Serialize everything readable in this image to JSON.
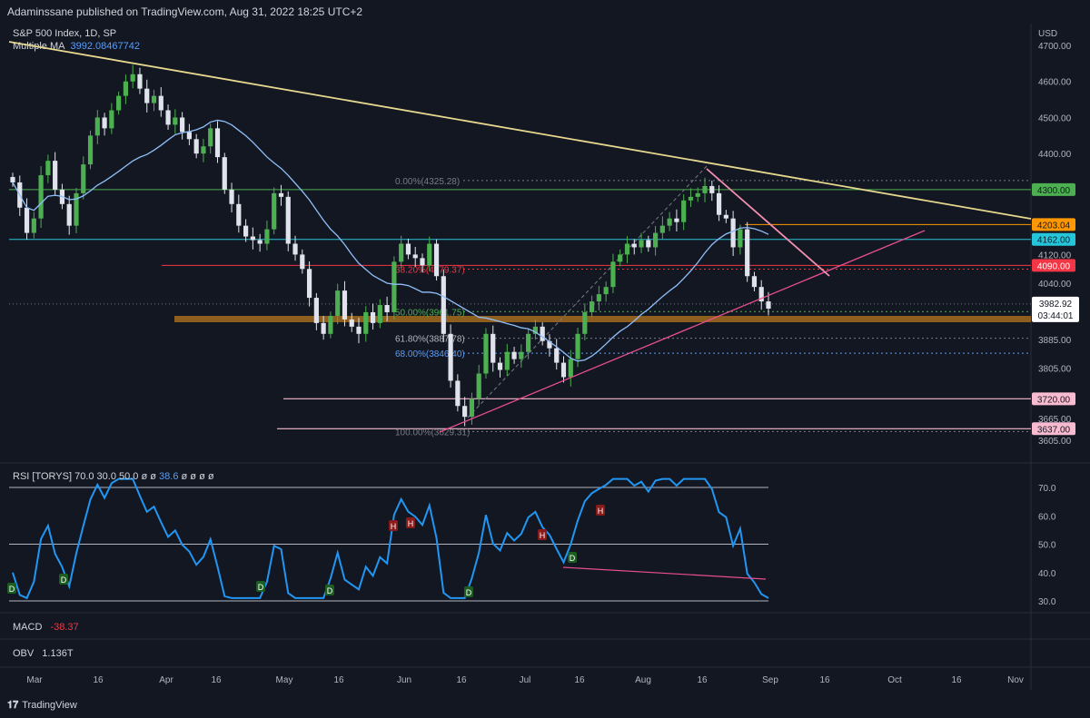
{
  "header": {
    "publisher_line": "Adaminssane published on TradingView.com, Aug 31, 2022 18:25 UTC+2"
  },
  "instrument": {
    "title": "S&P 500 Index, 1D, SP",
    "ma_label": "Multiple MA",
    "ma_value": "3992.08467742"
  },
  "currency": "USD",
  "price_axis": {
    "ticks": [
      "4700.00",
      "4600.00",
      "4500.00",
      "4400.00",
      "4120.00",
      "4040.00",
      "3885.00",
      "3805.00",
      "3665.00",
      "3605.00"
    ]
  },
  "level_badges": [
    {
      "label": "4300.00",
      "bg": "#4caf50",
      "fg": "#131722"
    },
    {
      "label": "4203.04",
      "bg": "#ff9800",
      "fg": "#131722"
    },
    {
      "label": "4162.00",
      "bg": "#26c6da",
      "fg": "#131722"
    },
    {
      "label": "4090.00",
      "bg": "#f23645",
      "fg": "#ffffff"
    },
    {
      "label": "3720.00",
      "bg": "#f8bbd0",
      "fg": "#131722"
    },
    {
      "label": "3637.00",
      "bg": "#f8bbd0",
      "fg": "#131722"
    }
  ],
  "last_price": {
    "price": "3982.92",
    "countdown": "03:44:01"
  },
  "fib_labels": [
    "0.00%(4325.28)",
    "38.20%(4079.37)",
    "50.00%(3961.75)",
    "61.80%(3887.78)",
    "68.00%(3846.40)",
    "100.00%(3629.31)"
  ],
  "rsi": {
    "label": "RSI [TORYS]",
    "params": "70.0  30.0  50.0  ø  ø",
    "value": "38.6",
    "tail": "ø  ø  ø  ø",
    "ticks": [
      "70.0",
      "60.0",
      "50.0",
      "40.0",
      "30.0"
    ],
    "div_marks": [
      {
        "t": "D"
      },
      {
        "t": "D"
      },
      {
        "t": "D"
      },
      {
        "t": "D"
      },
      {
        "t": "D"
      },
      {
        "t": "D"
      },
      {
        "t": "H"
      },
      {
        "t": "H"
      },
      {
        "t": "H"
      },
      {
        "t": "H"
      }
    ]
  },
  "macd": {
    "label": "MACD",
    "value": "-38.37"
  },
  "obv": {
    "label": "OBV",
    "value": "1.136T"
  },
  "time_axis": {
    "ticks": [
      "Mar",
      "16",
      "Apr",
      "16",
      "May",
      "16",
      "Jun",
      "16",
      "Jul",
      "16",
      "Aug",
      "16",
      "Sep",
      "16",
      "Oct",
      "16",
      "Nov"
    ]
  },
  "brand": "TradingView",
  "colors": {
    "up": "#4caf50",
    "down": "#e0e3eb",
    "ma": "#90bff9",
    "trend_upper": "#e6d88f",
    "trend_lower": "#e84f8f",
    "rsi": "#2196f3"
  },
  "chart_data": {
    "type": "candlestick",
    "title": "S&P 500 Index, 1D, SP",
    "ylim": [
      3590,
      4730
    ],
    "approx_closes": [
      4320,
      4250,
      4180,
      4220,
      4340,
      4380,
      4300,
      4260,
      4200,
      4290,
      4370,
      4450,
      4500,
      4470,
      4520,
      4560,
      4600,
      4620,
      4580,
      4540,
      4560,
      4520,
      4480,
      4500,
      4460,
      4440,
      4400,
      4420,
      4470,
      4390,
      4300,
      4260,
      4200,
      4170,
      4160,
      4150,
      4190,
      4290,
      4280,
      4150,
      4120,
      4080,
      4000,
      3930,
      3900,
      3950,
      4020,
      3940,
      3920,
      3900,
      3960,
      3930,
      3980,
      3960,
      4100,
      4150,
      4120,
      4110,
      4090,
      4150,
      4060,
      3900,
      3770,
      3700,
      3670,
      3720,
      3790,
      3900,
      3820,
      3800,
      3850,
      3830,
      3850,
      3900,
      3920,
      3880,
      3860,
      3820,
      3780,
      3830,
      3900,
      3960,
      3990,
      4010,
      4030,
      4100,
      4120,
      4150,
      4140,
      4160,
      4140,
      4180,
      4200,
      4220,
      4210,
      4270,
      4280,
      4290,
      4310,
      4290,
      4230,
      4220,
      4140,
      4190,
      4060,
      4030,
      3990,
      3970
    ]
  }
}
